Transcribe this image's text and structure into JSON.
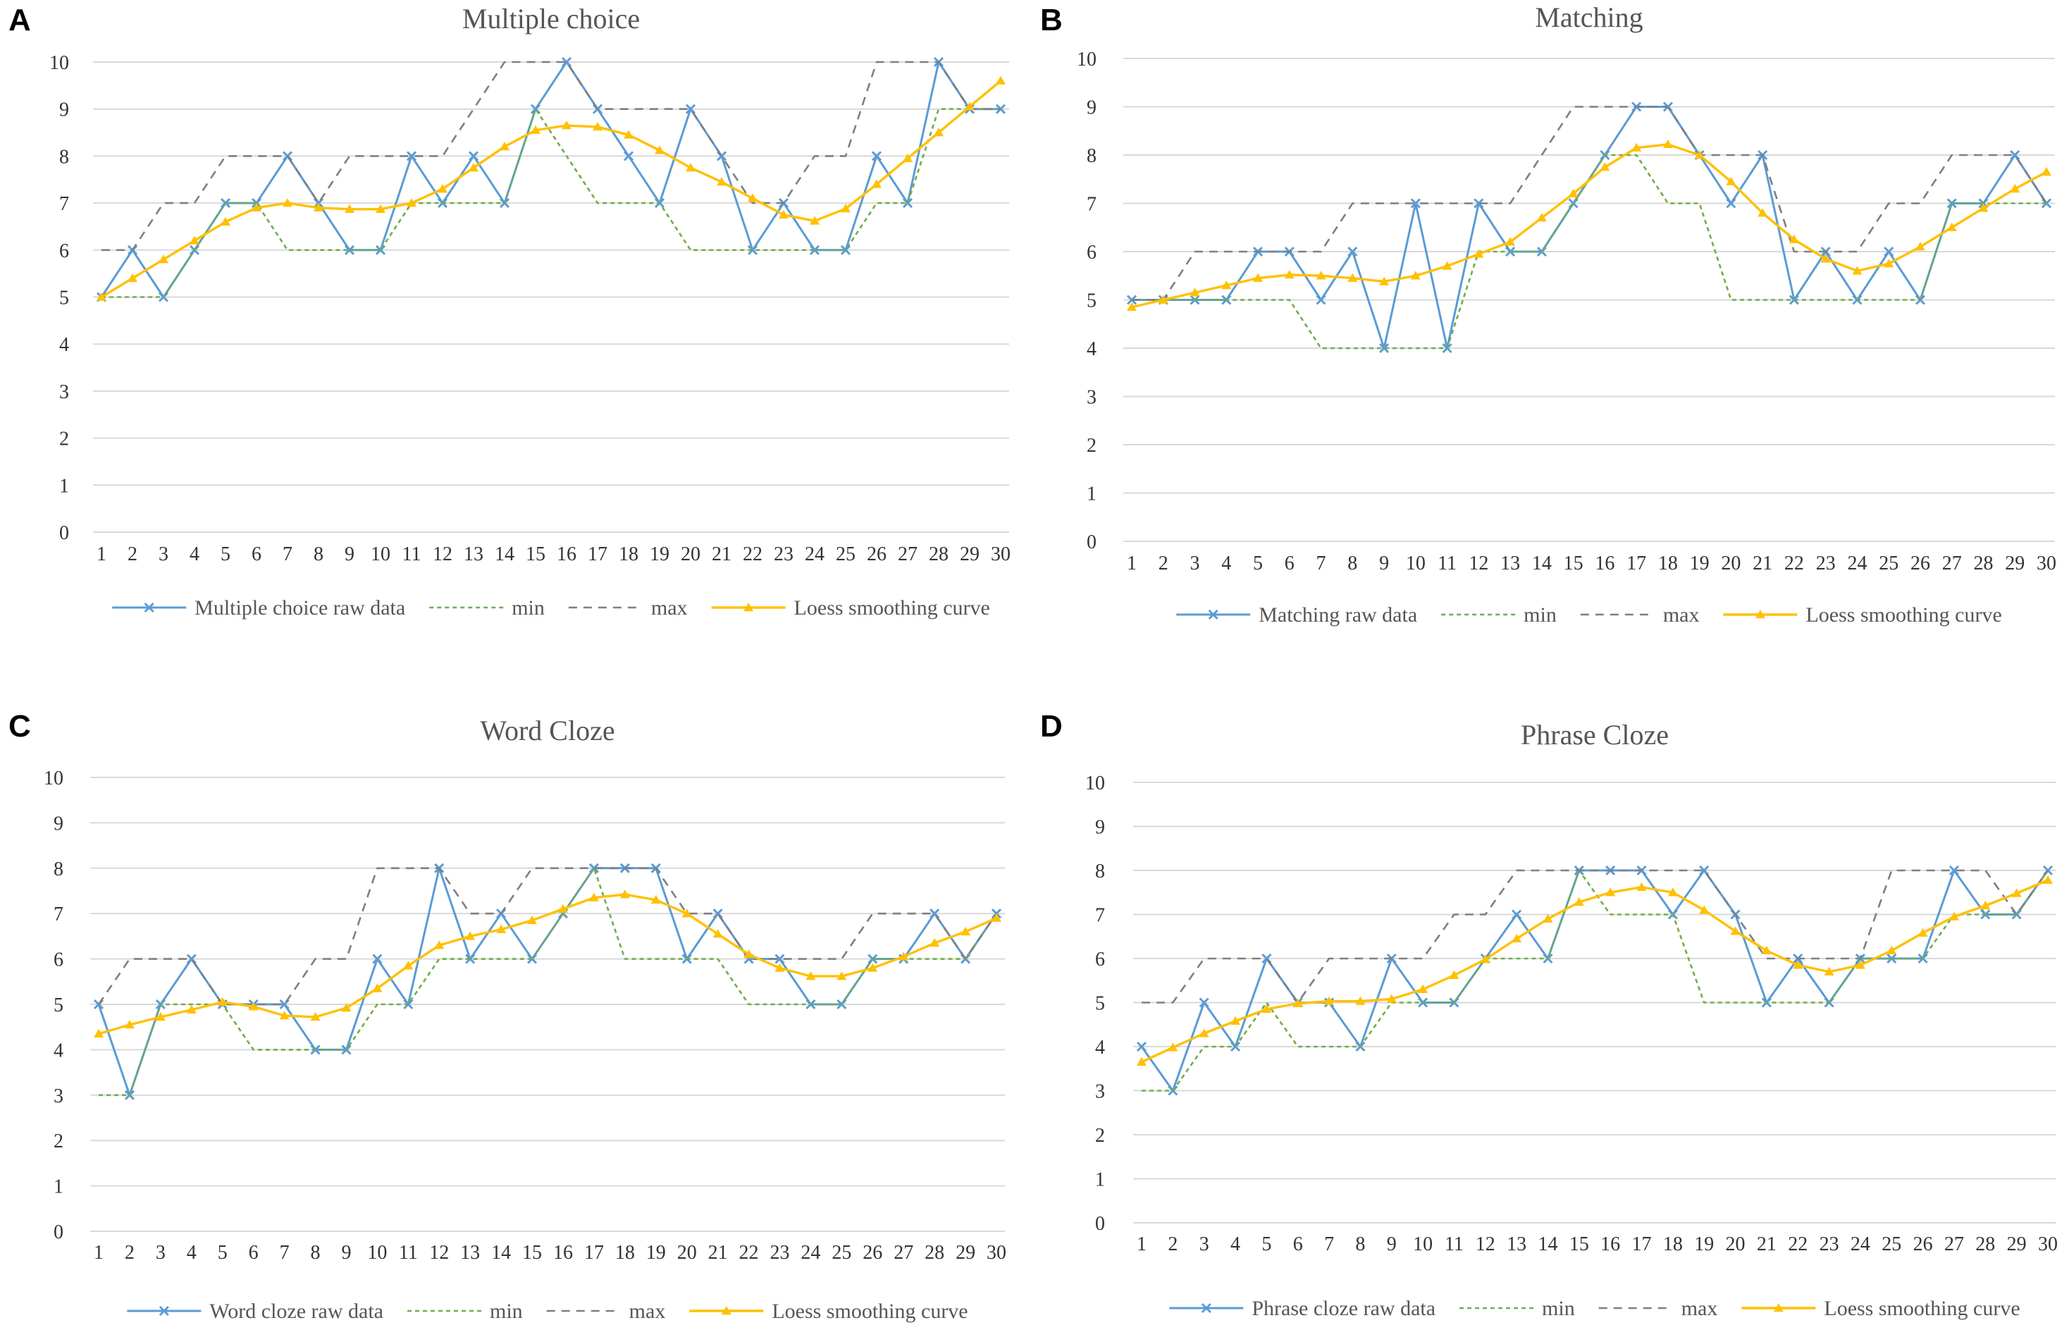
{
  "figure": {
    "x_categories": [
      "1",
      "2",
      "3",
      "4",
      "5",
      "6",
      "7",
      "8",
      "9",
      "10",
      "11",
      "12",
      "13",
      "14",
      "15",
      "16",
      "17",
      "18",
      "19",
      "20",
      "21",
      "22",
      "23",
      "24",
      "25",
      "26",
      "27",
      "28",
      "29",
      "30"
    ],
    "y_ticks": [
      "0",
      "1",
      "2",
      "3",
      "4",
      "5",
      "6",
      "7",
      "8",
      "9",
      "10"
    ]
  },
  "colors": {
    "raw": "#5B9BD5",
    "min": "#70AD47",
    "max": "#7F7F7F",
    "loess": "#FFC000",
    "grid": "#D9D9D9",
    "title": "#595959"
  },
  "chart_data": [
    {
      "panel": "A",
      "type": "line",
      "title": "Multiple choice",
      "ylim": [
        0,
        10
      ],
      "grid": true,
      "legend": "bottom",
      "series": [
        {
          "name": "Multiple choice raw data",
          "style": "raw",
          "values": [
            5,
            6,
            5,
            6,
            7,
            7,
            8,
            7,
            6,
            6,
            8,
            7,
            8,
            7,
            9,
            10,
            9,
            8,
            7,
            9,
            8,
            6,
            7,
            6,
            6,
            8,
            7,
            10,
            9,
            9
          ]
        },
        {
          "name": "min",
          "style": "min",
          "values": [
            5,
            5,
            5,
            6,
            7,
            7,
            6,
            6,
            6,
            6,
            7,
            7,
            7,
            7,
            9,
            8,
            7,
            7,
            7,
            6,
            6,
            6,
            6,
            6,
            6,
            7,
            7,
            9,
            9,
            9
          ]
        },
        {
          "name": "max",
          "style": "max",
          "values": [
            6,
            6,
            7,
            7,
            8,
            8,
            8,
            7,
            8,
            8,
            8,
            8,
            9,
            10,
            10,
            10,
            9,
            9,
            9,
            9,
            8,
            7,
            7,
            8,
            8,
            10,
            10,
            10,
            9,
            9
          ]
        },
        {
          "name": "Loess smoothing curve",
          "style": "loess",
          "values": [
            5.0,
            5.4,
            5.8,
            6.2,
            6.6,
            6.9,
            7.0,
            6.9,
            6.87,
            6.87,
            7.0,
            7.3,
            7.75,
            8.2,
            8.55,
            8.65,
            8.62,
            8.45,
            8.12,
            7.75,
            7.45,
            7.1,
            6.75,
            6.62,
            6.88,
            7.4,
            7.95,
            8.5,
            9.05,
            9.6
          ]
        }
      ]
    },
    {
      "panel": "B",
      "type": "line",
      "title": "Matching",
      "ylim": [
        0,
        10
      ],
      "grid": true,
      "legend": "bottom",
      "series": [
        {
          "name": "Matching raw data",
          "style": "raw",
          "values": [
            5,
            5,
            5,
            5,
            6,
            6,
            5,
            6,
            4,
            7,
            4,
            7,
            6,
            6,
            7,
            8,
            9,
            9,
            8,
            7,
            8,
            5,
            6,
            5,
            6,
            5,
            7,
            7,
            8,
            7
          ]
        },
        {
          "name": "min",
          "style": "min",
          "values": [
            5,
            5,
            5,
            5,
            5,
            5,
            4,
            4,
            4,
            4,
            4,
            6,
            6,
            6,
            7,
            8,
            8,
            7,
            7,
            5,
            5,
            5,
            5,
            5,
            5,
            5,
            7,
            7,
            7,
            7
          ]
        },
        {
          "name": "max",
          "style": "max",
          "values": [
            5,
            5,
            6,
            6,
            6,
            6,
            6,
            7,
            7,
            7,
            7,
            7,
            7,
            8,
            9,
            9,
            9,
            9,
            8,
            8,
            8,
            6,
            6,
            6,
            7,
            7,
            8,
            8,
            8,
            7
          ]
        },
        {
          "name": "Loess smoothing curve",
          "style": "loess",
          "values": [
            4.85,
            5.0,
            5.15,
            5.3,
            5.45,
            5.52,
            5.5,
            5.45,
            5.38,
            5.5,
            5.7,
            5.95,
            6.2,
            6.7,
            7.2,
            7.75,
            8.15,
            8.22,
            8.0,
            7.45,
            6.8,
            6.25,
            5.85,
            5.6,
            5.75,
            6.1,
            6.5,
            6.9,
            7.3,
            7.65
          ]
        }
      ]
    },
    {
      "panel": "C",
      "type": "line",
      "title": "Word Cloze",
      "ylim": [
        0,
        10
      ],
      "grid": true,
      "legend": "bottom",
      "series": [
        {
          "name": "Word cloze raw data",
          "style": "raw",
          "values": [
            5,
            3,
            5,
            6,
            5,
            5,
            5,
            4,
            4,
            6,
            5,
            8,
            6,
            7,
            6,
            7,
            8,
            8,
            8,
            6,
            7,
            6,
            6,
            5,
            5,
            6,
            6,
            7,
            6,
            7
          ]
        },
        {
          "name": "min",
          "style": "min",
          "values": [
            3,
            3,
            5,
            5,
            5,
            4,
            4,
            4,
            4,
            5,
            5,
            6,
            6,
            6,
            6,
            7,
            8,
            6,
            6,
            6,
            6,
            5,
            5,
            5,
            5,
            6,
            6,
            6,
            6,
            7
          ]
        },
        {
          "name": "max",
          "style": "max",
          "values": [
            5,
            6,
            6,
            6,
            5,
            5,
            5,
            6,
            6,
            8,
            8,
            8,
            7,
            7,
            8,
            8,
            8,
            8,
            8,
            7,
            7,
            6,
            6,
            6,
            6,
            7,
            7,
            7,
            6,
            7
          ]
        },
        {
          "name": "Loess smoothing curve",
          "style": "loess",
          "values": [
            4.35,
            4.55,
            4.72,
            4.88,
            5.05,
            4.95,
            4.75,
            4.72,
            4.92,
            5.35,
            5.85,
            6.3,
            6.5,
            6.65,
            6.85,
            7.1,
            7.35,
            7.42,
            7.3,
            7.0,
            6.55,
            6.1,
            5.8,
            5.62,
            5.62,
            5.8,
            6.05,
            6.35,
            6.6,
            6.9
          ]
        }
      ]
    },
    {
      "panel": "D",
      "type": "line",
      "title": "Phrase Cloze",
      "ylim": [
        0,
        10
      ],
      "grid": true,
      "legend": "bottom",
      "series": [
        {
          "name": "Phrase cloze raw data",
          "style": "raw",
          "values": [
            4,
            3,
            5,
            4,
            6,
            5,
            5,
            4,
            6,
            5,
            5,
            6,
            7,
            6,
            8,
            8,
            8,
            7,
            8,
            7,
            5,
            6,
            5,
            6,
            6,
            6,
            8,
            7,
            7,
            8
          ]
        },
        {
          "name": "min",
          "style": "min",
          "values": [
            3,
            3,
            4,
            4,
            5,
            4,
            4,
            4,
            5,
            5,
            5,
            6,
            6,
            6,
            8,
            7,
            7,
            7,
            5,
            5,
            5,
            5,
            5,
            6,
            6,
            6,
            7,
            7,
            7,
            8
          ]
        },
        {
          "name": "max",
          "style": "max",
          "values": [
            5,
            5,
            6,
            6,
            6,
            5,
            6,
            6,
            6,
            6,
            7,
            7,
            8,
            8,
            8,
            8,
            8,
            8,
            8,
            7,
            6,
            6,
            6,
            6,
            8,
            8,
            8,
            8,
            7,
            8
          ]
        },
        {
          "name": "Loess smoothing curve",
          "style": "loess",
          "values": [
            3.65,
            3.98,
            4.3,
            4.58,
            4.85,
            4.98,
            5.03,
            5.03,
            5.08,
            5.3,
            5.62,
            5.98,
            6.45,
            6.9,
            7.28,
            7.5,
            7.62,
            7.5,
            7.1,
            6.62,
            6.18,
            5.85,
            5.7,
            5.85,
            6.18,
            6.58,
            6.95,
            7.2,
            7.48,
            7.78
          ]
        }
      ]
    }
  ]
}
